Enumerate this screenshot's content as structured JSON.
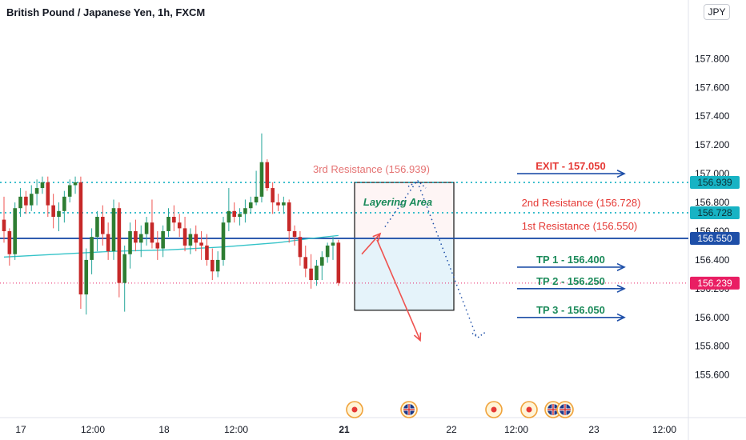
{
  "header": {
    "title": "British Pound / Japanese Yen, 1h, FXCM",
    "currency": "JPY"
  },
  "colors": {
    "up": "#26a69a",
    "down": "#ef5350",
    "bull_body": "#2e7d32",
    "bear_body": "#c62828",
    "blue": "#1e4fa8",
    "red_text": "#e53935",
    "green_text": "#1b8a5a",
    "cyan": "#17b3c4",
    "last_price": "#e91e63",
    "ma": "#34c3c8"
  },
  "chart_data": {
    "type": "candlestick",
    "ylim": [
      155.42,
      157.98
    ],
    "y_ticks": [
      "157.800",
      "157.600",
      "157.400",
      "157.200",
      "157.000",
      "156.800",
      "156.600",
      "156.400",
      "156.200",
      "156.000",
      "155.800",
      "155.600"
    ],
    "x_ticks": [
      "17",
      "12:00",
      "18",
      "12:00",
      "21",
      "22",
      "12:00",
      "23",
      "12:00"
    ],
    "bold_x_tick": "21",
    "ohlc": [
      [
        156.68,
        156.84,
        156.52,
        156.6
      ],
      [
        156.6,
        156.62,
        156.36,
        156.44
      ],
      [
        156.44,
        156.8,
        156.4,
        156.76
      ],
      [
        156.76,
        156.9,
        156.7,
        156.84
      ],
      [
        156.84,
        156.88,
        156.72,
        156.78
      ],
      [
        156.78,
        156.92,
        156.74,
        156.86
      ],
      [
        156.86,
        156.96,
        156.78,
        156.9
      ],
      [
        156.9,
        156.98,
        156.86,
        156.94
      ],
      [
        156.94,
        156.98,
        156.7,
        156.78
      ],
      [
        156.78,
        156.86,
        156.62,
        156.7
      ],
      [
        156.7,
        156.8,
        156.6,
        156.74
      ],
      [
        156.74,
        156.88,
        156.66,
        156.84
      ],
      [
        156.84,
        156.96,
        156.8,
        156.92
      ],
      [
        156.92,
        156.98,
        156.86,
        156.94
      ],
      [
        156.94,
        156.98,
        156.06,
        156.16
      ],
      [
        156.16,
        156.48,
        156.02,
        156.4
      ],
      [
        156.4,
        156.62,
        156.3,
        156.56
      ],
      [
        156.56,
        156.74,
        156.46,
        156.7
      ],
      [
        156.7,
        156.78,
        156.5,
        156.58
      ],
      [
        156.58,
        156.66,
        156.4,
        156.46
      ],
      [
        156.46,
        156.82,
        156.4,
        156.76
      ],
      [
        156.76,
        156.8,
        156.14,
        156.24
      ],
      [
        156.24,
        156.5,
        156.04,
        156.44
      ],
      [
        156.44,
        156.66,
        156.34,
        156.6
      ],
      [
        156.6,
        156.68,
        156.46,
        156.52
      ],
      [
        156.52,
        156.64,
        156.42,
        156.58
      ],
      [
        156.58,
        156.7,
        156.5,
        156.66
      ],
      [
        156.66,
        156.82,
        156.48,
        156.52
      ],
      [
        156.52,
        156.6,
        156.4,
        156.48
      ],
      [
        156.48,
        156.64,
        156.42,
        156.6
      ],
      [
        156.6,
        156.76,
        156.56,
        156.7
      ],
      [
        156.7,
        156.78,
        156.6,
        156.66
      ],
      [
        156.66,
        156.72,
        156.56,
        156.62
      ],
      [
        156.62,
        156.7,
        156.46,
        156.5
      ],
      [
        156.5,
        156.62,
        156.44,
        156.58
      ],
      [
        156.58,
        156.64,
        156.46,
        156.52
      ],
      [
        156.52,
        156.6,
        156.4,
        156.5
      ],
      [
        156.5,
        156.58,
        156.36,
        156.4
      ],
      [
        156.4,
        156.48,
        156.26,
        156.32
      ],
      [
        156.32,
        156.46,
        156.28,
        156.4
      ],
      [
        156.4,
        156.7,
        156.36,
        156.66
      ],
      [
        156.66,
        156.9,
        156.6,
        156.74
      ],
      [
        156.74,
        156.8,
        156.66,
        156.7
      ],
      [
        156.7,
        156.76,
        156.64,
        156.72
      ],
      [
        156.72,
        156.82,
        156.66,
        156.76
      ],
      [
        156.76,
        156.84,
        156.72,
        156.8
      ],
      [
        156.8,
        157.02,
        156.78,
        156.84
      ],
      [
        156.84,
        157.28,
        156.8,
        157.08
      ],
      [
        157.08,
        157.1,
        156.88,
        156.9
      ],
      [
        156.9,
        156.94,
        156.72,
        156.8
      ],
      [
        156.8,
        156.86,
        156.74,
        156.78
      ],
      [
        156.78,
        156.84,
        156.72,
        156.8
      ],
      [
        156.8,
        156.82,
        156.52,
        156.6
      ],
      [
        156.6,
        156.64,
        156.5,
        156.56
      ],
      [
        156.56,
        156.6,
        156.36,
        156.42
      ],
      [
        156.42,
        156.5,
        156.28,
        156.34
      ],
      [
        156.34,
        156.44,
        156.2,
        156.26
      ],
      [
        156.26,
        156.4,
        156.22,
        156.36
      ],
      [
        156.36,
        156.46,
        156.26,
        156.42
      ],
      [
        156.42,
        156.52,
        156.38,
        156.5
      ],
      [
        156.5,
        156.56,
        156.4,
        156.52
      ],
      [
        156.52,
        156.54,
        156.22,
        156.24
      ]
    ],
    "moving_average": [
      [
        0,
        156.42
      ],
      [
        10,
        156.44
      ],
      [
        20,
        156.46
      ],
      [
        30,
        156.47
      ],
      [
        40,
        156.49
      ],
      [
        50,
        156.52
      ],
      [
        56,
        156.55
      ],
      [
        61,
        156.57
      ]
    ],
    "levels": [
      {
        "name": "3rd Resistance",
        "value": 156.939,
        "label": "3rd Resistance (156.939)",
        "tag": "156.939"
      },
      {
        "name": "2nd Resistance",
        "value": 156.728,
        "label": "2nd Resistance (156.728)",
        "tag": "156.728"
      },
      {
        "name": "1st Resistance",
        "value": 156.55,
        "label": "1st Resistance (156.550)",
        "tag": "156.550"
      }
    ],
    "last_price": {
      "value": 156.239,
      "tag": "156.239"
    },
    "annotations": {
      "layering_area": "Layering Area",
      "exit": "EXIT - 157.050",
      "tp1": "TP 1 - 156.400",
      "tp2": "TP 2 - 156.250",
      "tp3": "TP 3 - 156.050"
    },
    "events": [
      "dot",
      "flag-uk",
      "dot",
      "dot",
      "flag-uk",
      "flag-uk"
    ]
  }
}
